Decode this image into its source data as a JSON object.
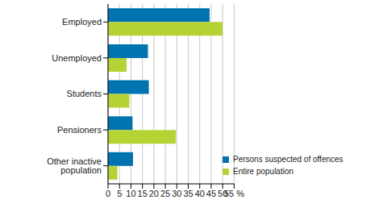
{
  "chart_data": {
    "type": "bar",
    "orientation": "horizontal",
    "categories": [
      "Employed",
      "Unemployed",
      "Students",
      "Pensioners",
      "Other inactive population"
    ],
    "series": [
      {
        "name": "Persons suspected of offences",
        "color": "#0073b0",
        "values": [
          44.3,
          17.4,
          17.8,
          10.7,
          10.9
        ]
      },
      {
        "name": "Entire population",
        "color": "#b5d334",
        "values": [
          49.9,
          8.1,
          9.3,
          29.6,
          4.1
        ]
      }
    ],
    "xlim": [
      0,
      55
    ],
    "xticks": [
      0,
      5,
      10,
      15,
      20,
      25,
      30,
      35,
      40,
      45,
      50,
      {
        "value": 55,
        "label": "55 %"
      }
    ],
    "grid": true,
    "legend": "lower right"
  }
}
